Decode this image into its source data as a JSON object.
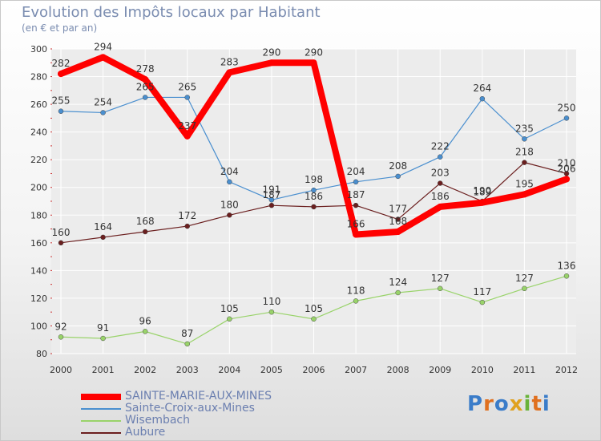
{
  "title": "Evolution des Impôts locaux par Habitant",
  "subtitle": "(en € et par an)",
  "logo": "Proxiti",
  "colors": {
    "background_grid": "#ffffff",
    "plot_background": "#ececec",
    "axis_text": "#333333"
  },
  "chart_data": {
    "type": "line",
    "title": "Evolution des Impôts locaux par Habitant",
    "subtitle": "(en € et par an)",
    "xlabel": "",
    "ylabel": "",
    "x": [
      "2000",
      "2001",
      "2002",
      "2003",
      "2004",
      "2005",
      "2006",
      "2007",
      "2008",
      "2009",
      "2010",
      "2011",
      "2012"
    ],
    "ylim": [
      80,
      300
    ],
    "yticks": [
      80,
      100,
      120,
      140,
      160,
      180,
      200,
      220,
      240,
      260,
      280,
      300
    ],
    "grid": true,
    "legend_position": "bottom-left",
    "series": [
      {
        "name": "SAINTE-MARIE-AUX-MINES",
        "color": "#ff0000",
        "width": 8,
        "values": [
          282,
          294,
          278,
          237,
          283,
          290,
          290,
          166,
          168,
          186,
          189,
          195,
          206
        ]
      },
      {
        "name": "Sainte-Croix-aux-Mines",
        "color": "#4a8fcf",
        "width": 1.2,
        "values": [
          255,
          254,
          265,
          265,
          204,
          191,
          198,
          204,
          208,
          222,
          264,
          235,
          250
        ]
      },
      {
        "name": "Wisembach",
        "color": "#99d36a",
        "width": 1.2,
        "values": [
          92,
          91,
          96,
          87,
          105,
          110,
          105,
          118,
          124,
          127,
          117,
          127,
          136
        ]
      },
      {
        "name": "Aubure",
        "color": "#6b1f1f",
        "width": 1.2,
        "values": [
          160,
          164,
          168,
          172,
          180,
          187,
          186,
          187,
          177,
          203,
          190,
          218,
          210
        ]
      }
    ]
  }
}
